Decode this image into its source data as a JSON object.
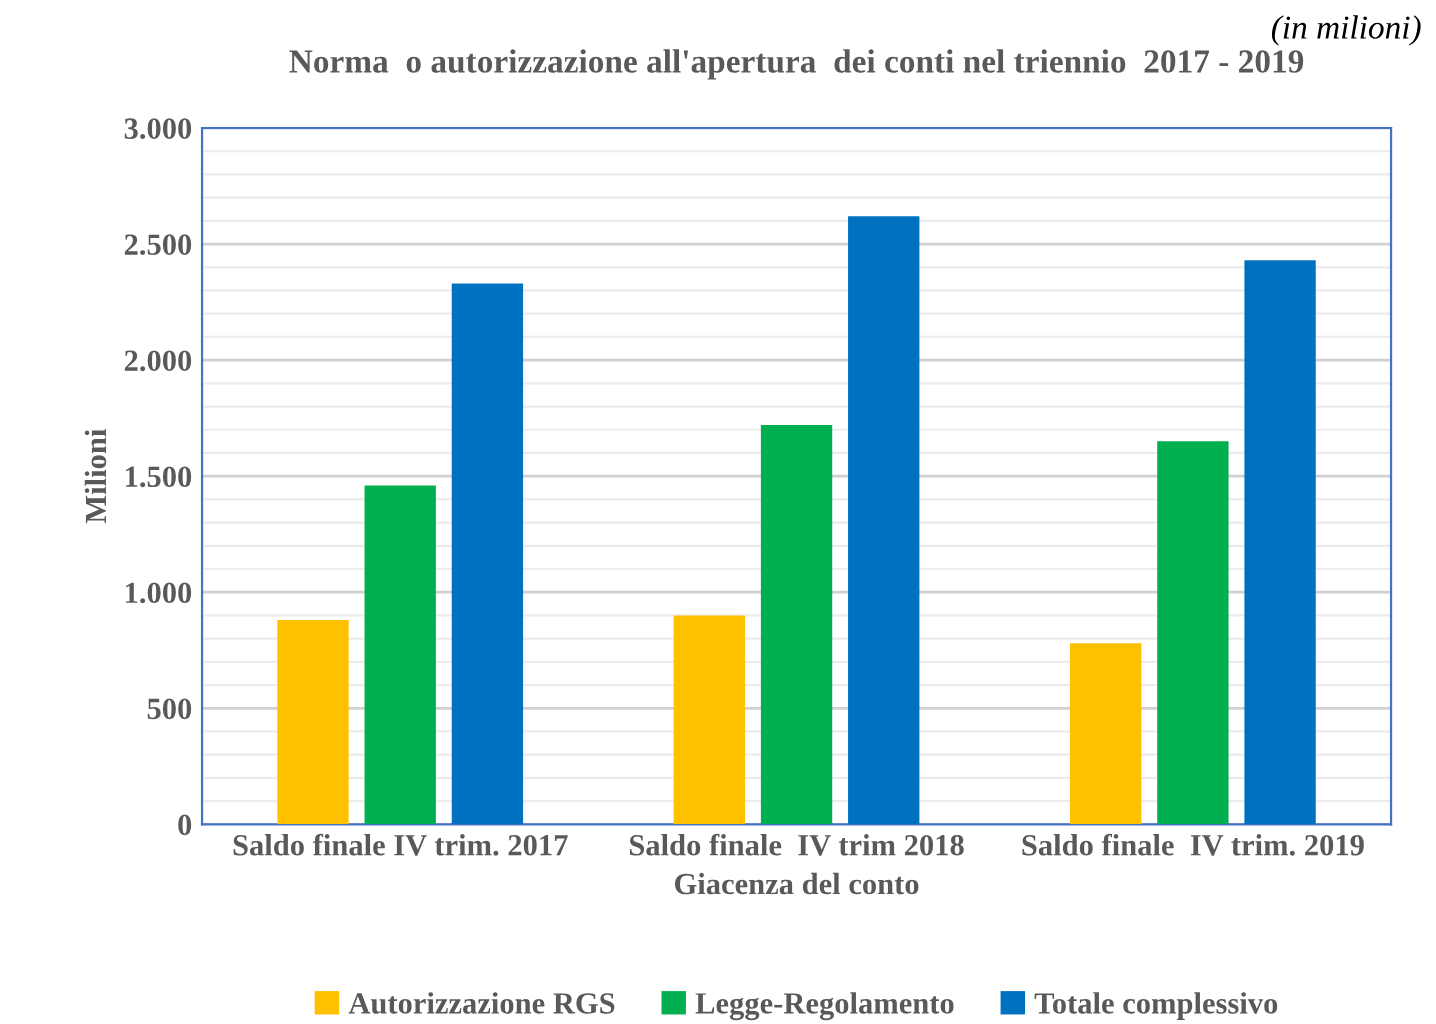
{
  "chart_data": {
    "type": "bar",
    "title": "Norma  o autorizzazione all'apertura  dei conti nel triennio  2017 - 2019",
    "xlabel": "Giacenza del conto",
    "ylabel": "Milioni",
    "annotations": [
      "(in milioni)"
    ],
    "categories": [
      "Saldo finale IV trim. 2017",
      "Saldo finale  IV trim 2018",
      "Saldo finale  IV trim. 2019"
    ],
    "series": [
      {
        "name": "Autorizzazione RGS",
        "color": "#ffc000",
        "values": [
          880,
          900,
          780
        ]
      },
      {
        "name": "Legge-Regolamento",
        "color": "#00b050",
        "values": [
          1460,
          1720,
          1650
        ]
      },
      {
        "name": "Totale complessivo",
        "color": "#0070c0",
        "values": [
          2330,
          2620,
          2430
        ]
      }
    ],
    "ylim": [
      0,
      3000
    ],
    "yticks": [
      {
        "value": 0,
        "label": "0"
      },
      {
        "value": 500,
        "label": "500"
      },
      {
        "value": 1000,
        "label": "1.000"
      },
      {
        "value": 1500,
        "label": "1.500"
      },
      {
        "value": 2000,
        "label": "2.000"
      },
      {
        "value": 2500,
        "label": "2.500"
      },
      {
        "value": 3000,
        "label": "3.000"
      }
    ],
    "grid": "y",
    "legend": "bottom"
  }
}
